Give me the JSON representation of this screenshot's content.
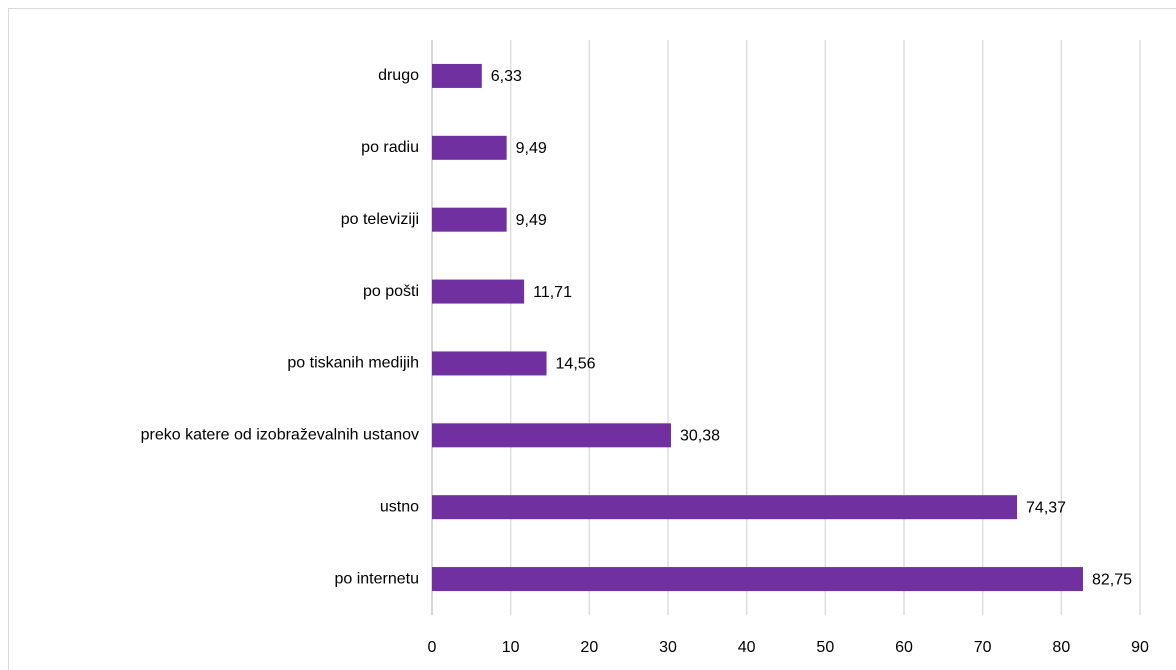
{
  "chart_data": {
    "type": "bar",
    "orientation": "horizontal",
    "categories": [
      "drugo",
      "po radiu",
      "po televiziji",
      "po pošti",
      "po tiskanih medijih",
      "preko katere od izobraževalnih ustanov",
      "ustno",
      "po internetu"
    ],
    "values": [
      6.33,
      9.49,
      9.49,
      11.71,
      14.56,
      30.38,
      74.37,
      82.75
    ],
    "value_labels": [
      "6,33",
      "9,49",
      "9,49",
      "11,71",
      "14,56",
      "30,38",
      "74,37",
      "82,75"
    ],
    "color": "#7030a0",
    "xlim": [
      0,
      90
    ],
    "xticks": [
      0,
      10,
      20,
      30,
      40,
      50,
      60,
      70,
      80,
      90
    ],
    "grid": true
  }
}
